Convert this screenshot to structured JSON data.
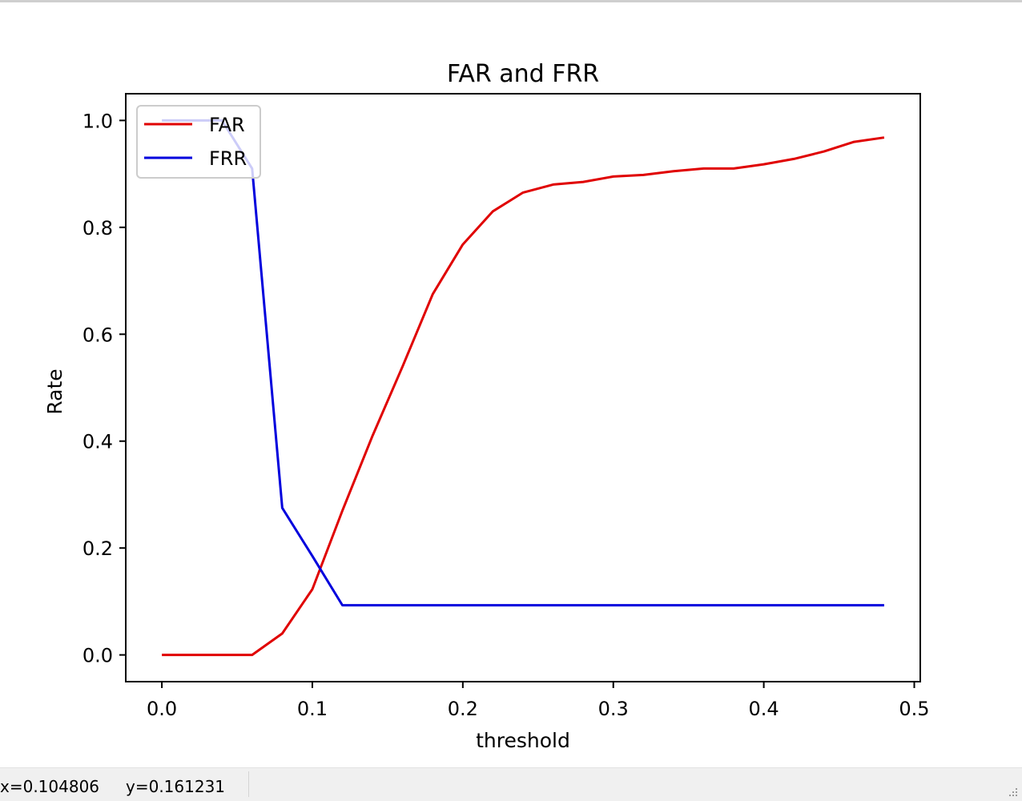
{
  "status_bar": {
    "x_readout": "x=0.104806",
    "y_readout": "y=0.161231"
  },
  "chart_data": {
    "type": "line",
    "title": "FAR and FRR",
    "xlabel": "threshold",
    "ylabel": "Rate",
    "xlim": [
      -0.024,
      0.504
    ],
    "ylim": [
      -0.05,
      1.05
    ],
    "xticks": [
      0.0,
      0.1,
      0.2,
      0.3,
      0.4,
      0.5
    ],
    "xtick_labels": [
      "0.0",
      "0.1",
      "0.2",
      "0.3",
      "0.4",
      "0.5"
    ],
    "yticks": [
      0.0,
      0.2,
      0.4,
      0.6,
      0.8,
      1.0
    ],
    "ytick_labels": [
      "0.0",
      "0.2",
      "0.4",
      "0.6",
      "0.8",
      "1.0"
    ],
    "grid": false,
    "legend_position": "upper-left",
    "x": [
      0.0,
      0.02,
      0.04,
      0.06,
      0.08,
      0.1,
      0.12,
      0.14,
      0.16,
      0.18,
      0.2,
      0.22,
      0.24,
      0.26,
      0.28,
      0.3,
      0.32,
      0.34,
      0.36,
      0.38,
      0.4,
      0.42,
      0.44,
      0.46,
      0.48
    ],
    "series": [
      {
        "name": "FAR",
        "color": "#e00000",
        "values": [
          0.0,
          0.0,
          0.0,
          0.0,
          0.04,
          0.123,
          0.27,
          0.41,
          0.54,
          0.675,
          0.768,
          0.83,
          0.865,
          0.88,
          0.885,
          0.895,
          0.898,
          0.905,
          0.91,
          0.91,
          0.918,
          0.928,
          0.942,
          0.96,
          0.968
        ]
      },
      {
        "name": "FRR",
        "color": "#0000dd",
        "values": [
          1.0,
          1.0,
          1.0,
          0.91,
          0.275,
          0.185,
          0.093,
          0.093,
          0.093,
          0.093,
          0.093,
          0.093,
          0.093,
          0.093,
          0.093,
          0.093,
          0.093,
          0.093,
          0.093,
          0.093,
          0.093,
          0.093,
          0.093,
          0.093,
          0.093
        ]
      }
    ]
  }
}
